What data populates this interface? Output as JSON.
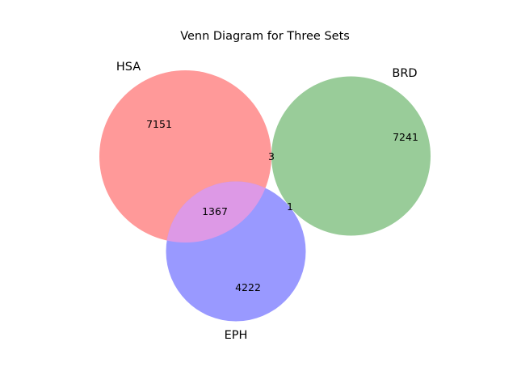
{
  "title": "Venn Diagram for Three Sets",
  "sets": [
    {
      "name": "HSA",
      "color": "#ff9999"
    },
    {
      "name": "BRD",
      "color": "#99cc99"
    },
    {
      "name": "EPH",
      "color": "#9999ff"
    }
  ],
  "overlap_color": "#dd99e6",
  "regions": {
    "hsa_only": "7151",
    "brd_only": "7241",
    "eph_only": "4222",
    "hsa_brd": "3",
    "hsa_eph": "1367",
    "brd_eph": "1"
  }
}
